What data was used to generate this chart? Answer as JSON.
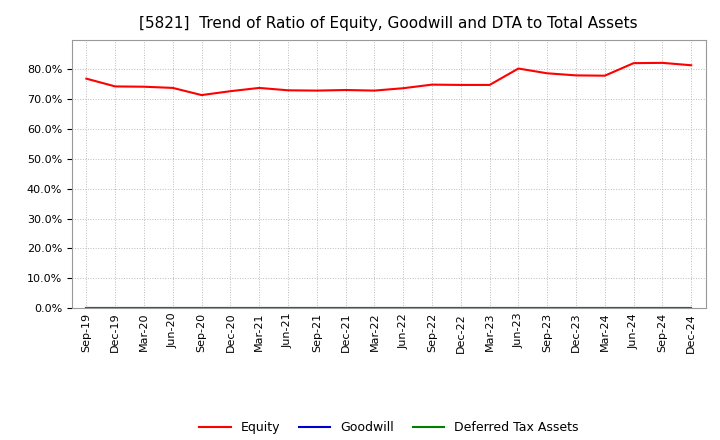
{
  "title": "[5821]  Trend of Ratio of Equity, Goodwill and DTA to Total Assets",
  "x_labels": [
    "Sep-19",
    "Dec-19",
    "Mar-20",
    "Jun-20",
    "Sep-20",
    "Dec-20",
    "Mar-21",
    "Jun-21",
    "Sep-21",
    "Dec-21",
    "Mar-22",
    "Jun-22",
    "Sep-22",
    "Dec-22",
    "Mar-23",
    "Jun-23",
    "Sep-23",
    "Dec-23",
    "Mar-24",
    "Jun-24",
    "Sep-24",
    "Dec-24"
  ],
  "equity": [
    0.769,
    0.743,
    0.742,
    0.738,
    0.714,
    0.727,
    0.738,
    0.73,
    0.729,
    0.731,
    0.729,
    0.737,
    0.749,
    0.748,
    0.748,
    0.803,
    0.787,
    0.78,
    0.779,
    0.821,
    0.822,
    0.814
  ],
  "goodwill": [
    0.0,
    0.0,
    0.0,
    0.0,
    0.0,
    0.0,
    0.0,
    0.0,
    0.0,
    0.0,
    0.0,
    0.0,
    0.0,
    0.0,
    0.0,
    0.0,
    0.0,
    0.0,
    0.0,
    0.0,
    0.0,
    0.0
  ],
  "dta": [
    0.0,
    0.0,
    0.0,
    0.0,
    0.0,
    0.0,
    0.0,
    0.0,
    0.0,
    0.0,
    0.0,
    0.0,
    0.0,
    0.0,
    0.0,
    0.0,
    0.0,
    0.0,
    0.0,
    0.0,
    0.0,
    0.0
  ],
  "equity_color": "#ff0000",
  "goodwill_color": "#0000cc",
  "dta_color": "#008000",
  "ylim": [
    0.0,
    0.9
  ],
  "yticks": [
    0.0,
    0.1,
    0.2,
    0.3,
    0.4,
    0.5,
    0.6,
    0.7,
    0.8
  ],
  "background_color": "#ffffff",
  "plot_bg_color": "#ffffff",
  "grid_color": "#bbbbbb",
  "title_fontsize": 11,
  "tick_fontsize": 8,
  "legend_labels": [
    "Equity",
    "Goodwill",
    "Deferred Tax Assets"
  ]
}
